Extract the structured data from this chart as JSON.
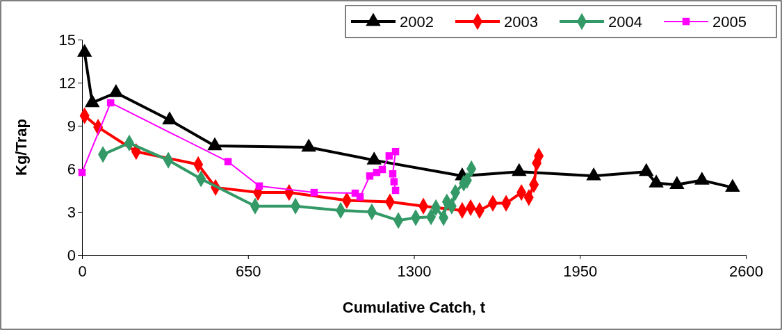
{
  "chart_data": {
    "type": "line",
    "xlabel": "Cumulative Catch, t",
    "ylabel": "Kg/Trap",
    "xlim": [
      0,
      2600
    ],
    "xticks": [
      0,
      650,
      1300,
      1950,
      2600
    ],
    "ylim": [
      0,
      15
    ],
    "yticks": [
      0,
      3,
      6,
      9,
      12,
      15
    ],
    "grid": false,
    "legend": "top right",
    "series": [
      {
        "name": "2002",
        "color": "#000000",
        "marker": "triangle",
        "x": [
          10,
          40,
          133,
          343,
          520,
          888,
          1144,
          1489,
          1712,
          2004,
          2210,
          2249,
          2330,
          2428,
          2548
        ],
        "values": [
          14.1,
          10.6,
          11.3,
          9.4,
          7.6,
          7.5,
          6.6,
          5.5,
          5.8,
          5.5,
          5.8,
          5.0,
          4.9,
          5.2,
          4.7
        ]
      },
      {
        "name": "2003",
        "color": "#ff0000",
        "marker": "diamond",
        "x": [
          10,
          63,
          212,
          455,
          523,
          689,
          811,
          1037,
          1206,
          1337,
          1489,
          1522,
          1557,
          1609,
          1661,
          1721,
          1750,
          1770,
          1781,
          1789
        ],
        "values": [
          9.7,
          8.9,
          7.2,
          6.3,
          4.7,
          4.35,
          4.35,
          3.8,
          3.7,
          3.4,
          3.1,
          3.3,
          3.1,
          3.6,
          3.6,
          4.35,
          4.0,
          4.9,
          6.4,
          6.9
        ]
      },
      {
        "name": "2004",
        "color": "#339966",
        "marker": "diamond",
        "x": [
          82,
          185,
          338,
          466,
          678,
          836,
          1013,
          1135,
          1239,
          1307,
          1367,
          1386,
          1416,
          1429,
          1448,
          1462,
          1495,
          1508,
          1525
        ],
        "values": [
          7.0,
          7.8,
          6.6,
          5.3,
          3.4,
          3.4,
          3.1,
          3.0,
          2.4,
          2.6,
          2.65,
          3.3,
          2.6,
          3.7,
          3.4,
          4.35,
          5.0,
          5.2,
          6.0
        ]
      },
      {
        "name": "2005",
        "color": "#ff00ff",
        "marker": "square",
        "x": [
          0,
          112,
          572,
          694,
          909,
          1070,
          1089,
          1127,
          1154,
          1176,
          1203,
          1228,
          1217,
          1222,
          1228
        ],
        "values": [
          5.75,
          10.6,
          6.5,
          4.8,
          4.35,
          4.3,
          4.05,
          5.5,
          5.75,
          5.95,
          6.9,
          7.2,
          5.65,
          5.1,
          4.5
        ]
      }
    ]
  }
}
